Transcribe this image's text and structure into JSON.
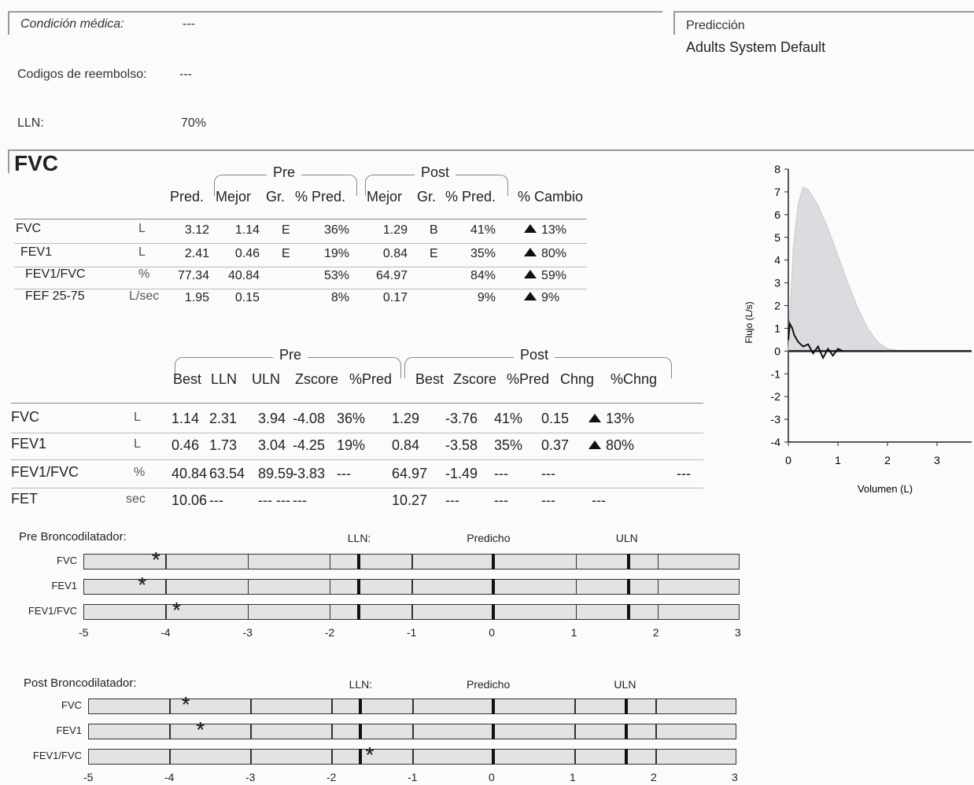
{
  "patient_info": {
    "condition_label": "Condición médica:",
    "condition_value": "---",
    "codes_label": "Codigos de reembolso:",
    "codes_value": "---",
    "lln_label": "LLN:",
    "lln_value": "70%",
    "prediction_label": "Predicción",
    "prediction_value": "Adults System Default"
  },
  "fvc_section": {
    "title": "FVC"
  },
  "table1": {
    "group_pre": "Pre",
    "group_post": "Post",
    "headers": [
      "Pred.",
      "Mejor",
      "Gr.",
      "% Pred.",
      "Mejor",
      "Gr.",
      "% Pred.",
      "% Cambio"
    ],
    "rows": [
      {
        "name": "FVC",
        "unit": "L",
        "pred": "3.12",
        "mejor": "1.14",
        "gr": "E",
        "pct": "36%",
        "post_mejor": "1.29",
        "post_gr": "B",
        "post_pct": "41%",
        "cambio": "13%"
      },
      {
        "name": "FEV1",
        "unit": "L",
        "pred": "2.41",
        "mejor": "0.46",
        "gr": "E",
        "pct": "19%",
        "post_mejor": "0.84",
        "post_gr": "E",
        "post_pct": "35%",
        "cambio": "80%"
      },
      {
        "name": "FEV1/FVC",
        "unit": "%",
        "pred": "77.34",
        "mejor": "40.84",
        "gr": "",
        "pct": "53%",
        "post_mejor": "64.97",
        "post_gr": "",
        "post_pct": "84%",
        "cambio": "59%"
      },
      {
        "name": "FEF 25-75",
        "unit": "L/sec",
        "pred": "1.95",
        "mejor": "0.15",
        "gr": "",
        "pct": "8%",
        "post_mejor": "0.17",
        "post_gr": "",
        "post_pct": "9%",
        "cambio": "9%"
      }
    ]
  },
  "table2": {
    "group_pre": "Pre",
    "group_post": "Post",
    "headers": [
      "Best",
      "LLN",
      "ULN",
      "Zscore",
      "%Pred",
      "Best",
      "Zscore",
      "%Pred",
      "Chng",
      "%Chng"
    ],
    "rows": [
      {
        "name": "FVC",
        "unit": "L",
        "best": "1.14",
        "lln": "2.31",
        "uln": "3.94",
        "z": "-4.08",
        "pred": "36%",
        "pbest": "1.29",
        "pz": "-3.76",
        "ppred": "41%",
        "chng": "0.15",
        "pchng": "13%",
        "x": ""
      },
      {
        "name": "FEV1",
        "unit": "L",
        "best": "0.46",
        "lln": "1.73",
        "uln": "3.04",
        "z": "-4.25",
        "pred": "19%",
        "pbest": "0.84",
        "pz": "-3.58",
        "ppred": "35%",
        "chng": "0.37",
        "pchng": "80%",
        "x": ""
      },
      {
        "name": "FEV1/FVC",
        "unit": "%",
        "best": "40.84",
        "lln": "63.54",
        "uln": "89.59",
        "z": "-3.83",
        "pred": "---",
        "pbest": "64.97",
        "pz": "-1.49",
        "ppred": "---",
        "chng": "---",
        "pchng": "",
        "x": "---"
      },
      {
        "name": "FET",
        "unit": "sec",
        "best": "10.06",
        "lln": "---",
        "uln": "--- ---",
        "z": "---",
        "pred": "",
        "pbest": "10.27",
        "pz": "---",
        "ppred": "---",
        "chng": "---",
        "pchng": "---",
        "x": ""
      }
    ]
  },
  "zscore_pre": {
    "title": "Pre Broncodilatador:",
    "lln_label": "LLN:",
    "pred_label": "Predicho",
    "uln_label": "ULN",
    "rows": [
      {
        "label": "FVC",
        "z": -4.08
      },
      {
        "label": "FEV1",
        "z": -4.25
      },
      {
        "label": "FEV1/FVC",
        "z": -3.83
      }
    ],
    "axis": [
      "-5",
      "-4",
      "-3",
      "-2",
      "-1",
      "0",
      "1",
      "2",
      "3"
    ],
    "lln_z": -1.645,
    "uln_z": 1.645
  },
  "zscore_post": {
    "title": "Post Broncodilatador:",
    "lln_label": "LLN:",
    "pred_label": "Predicho",
    "uln_label": "ULN",
    "rows": [
      {
        "label": "FVC",
        "z": -3.76
      },
      {
        "label": "FEV1",
        "z": -3.58
      },
      {
        "label": "FEV1/FVC",
        "z": -1.49
      }
    ],
    "axis": [
      "-5",
      "-4",
      "-3",
      "-2",
      "-1",
      "0",
      "1",
      "2",
      "3"
    ],
    "lln_z": -1.645,
    "uln_z": 1.645
  },
  "flow_chart": {
    "ylabel": "Flujo (L/s)",
    "xlabel": "Volumen (L)",
    "y_ticks": [
      "8",
      "7",
      "6",
      "5",
      "4",
      "3",
      "2",
      "1",
      "0",
      "-1",
      "-2",
      "-3",
      "-4"
    ],
    "x_ticks": [
      "0",
      "1",
      "2",
      "3"
    ]
  },
  "chart_data": {
    "type": "area",
    "xlabel": "Volumen (L)",
    "ylabel": "Flujo (L/s)",
    "xlim": [
      0,
      3.7
    ],
    "ylim": [
      -4,
      8
    ],
    "series": [
      {
        "name": "",
        "style": "shaded",
        "x": [
          0,
          0.1,
          0.2,
          0.3,
          0.4,
          0.6,
          0.8,
          1.0,
          1.2,
          1.4,
          1.6,
          1.8,
          2.0,
          2.3,
          3.7
        ],
        "y": [
          0,
          4.5,
          6.5,
          7.2,
          7.1,
          6.4,
          5.4,
          4.2,
          3.0,
          1.9,
          1.0,
          0.4,
          0.1,
          0,
          0
        ]
      },
      {
        "name": "",
        "style": "line",
        "x": [
          0,
          0.03,
          0.08,
          0.12,
          0.2,
          0.3,
          0.4,
          0.5,
          0.6,
          0.7,
          0.8,
          0.9,
          1.0,
          1.1
        ],
        "y": [
          0.5,
          1.2,
          1.0,
          0.7,
          0.4,
          0.2,
          0.3,
          -0.1,
          0.2,
          -0.3,
          0.1,
          -0.2,
          0.1,
          0
        ]
      }
    ]
  }
}
